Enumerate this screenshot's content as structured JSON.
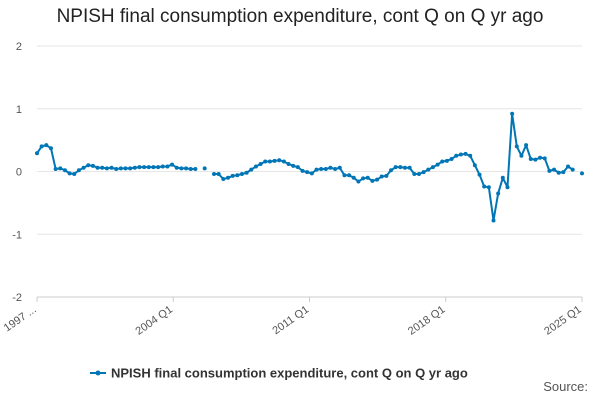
{
  "chart_data": {
    "type": "line",
    "title": "NPISH final consumption expenditure, cont Q on Q yr ago",
    "xlabel": "",
    "ylabel": "",
    "ylim": [
      -2,
      2
    ],
    "y_ticks": [
      "2",
      "1",
      "0",
      "-1",
      "-2"
    ],
    "x_tick_labels": [
      "1997 ...",
      "2004 Q1",
      "2011 Q1",
      "2018 Q1",
      "2025 Q1"
    ],
    "grid": "horizontal",
    "legend_position": "bottom",
    "line_color": "#0076b6",
    "series": [
      {
        "name": "NPISH final consumption expenditure, cont Q on Q yr ago",
        "values": [
          0.29,
          0.4,
          0.42,
          0.37,
          0.04,
          0.05,
          0.02,
          -0.03,
          -0.04,
          0.02,
          0.06,
          0.1,
          0.09,
          0.06,
          0.06,
          0.05,
          0.06,
          0.04,
          0.05,
          0.05,
          0.05,
          0.06,
          0.07,
          0.07,
          0.07,
          0.07,
          0.07,
          0.08,
          0.08,
          0.11,
          0.06,
          0.05,
          0.05,
          0.04,
          0.04,
          null,
          0.05,
          null,
          -0.04,
          -0.04,
          -0.12,
          -0.1,
          -0.07,
          -0.06,
          -0.04,
          -0.02,
          0.03,
          0.08,
          0.12,
          0.16,
          0.16,
          0.17,
          0.18,
          0.16,
          0.12,
          0.09,
          0.07,
          0.01,
          -0.01,
          -0.03,
          0.03,
          0.04,
          0.04,
          0.06,
          0.04,
          0.06,
          -0.06,
          -0.06,
          -0.1,
          -0.16,
          -0.11,
          -0.1,
          -0.15,
          -0.13,
          -0.08,
          -0.07,
          0.02,
          0.07,
          0.07,
          0.06,
          0.06,
          -0.04,
          -0.04,
          -0.01,
          0.03,
          0.07,
          0.11,
          0.16,
          0.17,
          0.2,
          0.25,
          0.27,
          0.28,
          0.25,
          0.1,
          -0.05,
          -0.24,
          -0.25,
          -0.78,
          -0.35,
          -0.1,
          -0.25,
          0.92,
          0.4,
          0.25,
          0.42,
          0.2,
          0.19,
          0.22,
          0.21,
          0.01,
          0.03,
          -0.02,
          -0.01,
          0.08,
          0.03,
          null,
          -0.03
        ]
      }
    ]
  },
  "legend": {
    "label": "NPISH final consumption expenditure, cont Q on Q yr ago"
  },
  "footer": {
    "source_label": "Source:"
  }
}
